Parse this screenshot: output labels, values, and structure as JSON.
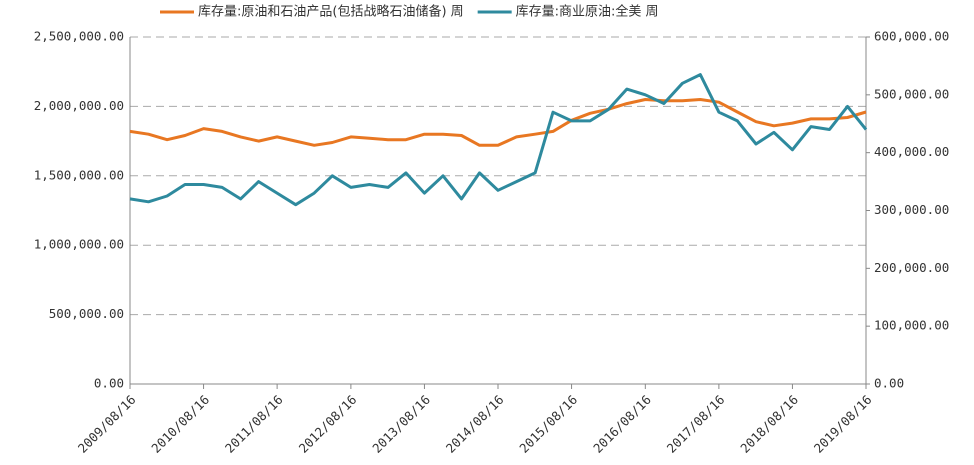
{
  "chart_data": {
    "type": "line",
    "x": [
      "2009/08/16",
      "2009/11/16",
      "2010/02/16",
      "2010/05/16",
      "2010/08/16",
      "2010/11/16",
      "2011/02/16",
      "2011/05/16",
      "2011/08/16",
      "2011/11/16",
      "2012/02/16",
      "2012/05/16",
      "2012/08/16",
      "2012/11/16",
      "2013/02/16",
      "2013/05/16",
      "2013/08/16",
      "2013/11/16",
      "2014/02/16",
      "2014/05/16",
      "2014/08/16",
      "2014/11/16",
      "2015/02/16",
      "2015/05/16",
      "2015/08/16",
      "2015/11/16",
      "2016/02/16",
      "2016/05/16",
      "2016/08/16",
      "2016/11/16",
      "2017/02/16",
      "2017/05/16",
      "2017/08/16",
      "2017/11/16",
      "2018/02/16",
      "2018/05/16",
      "2018/08/16",
      "2018/11/16",
      "2019/02/16",
      "2019/05/16",
      "2019/08/16"
    ],
    "series": [
      {
        "name": "库存量:原油和石油产品(包括战略石油储备) 周",
        "color": "#e87722",
        "values": [
          1820000,
          1800000,
          1760000,
          1790000,
          1840000,
          1820000,
          1780000,
          1750000,
          1780000,
          1750000,
          1720000,
          1740000,
          1780000,
          1770000,
          1760000,
          1760000,
          1800000,
          1800000,
          1790000,
          1720000,
          1720000,
          1780000,
          1800000,
          1820000,
          1900000,
          1950000,
          1980000,
          2020000,
          2050000,
          2040000,
          2040000,
          2050000,
          2030000,
          1960000,
          1890000,
          1860000,
          1880000,
          1910000,
          1910000,
          1920000,
          1960000
        ]
      },
      {
        "name": "库存量:商业原油:全美 周",
        "color": "#2e8a9e",
        "axis": "y2",
        "values": [
          320000,
          315000,
          325000,
          345000,
          345000,
          340000,
          320000,
          350000,
          330000,
          310000,
          330000,
          360000,
          340000,
          345000,
          340000,
          365000,
          330000,
          360000,
          320000,
          365000,
          335000,
          350000,
          365000,
          470000,
          455000,
          455000,
          475000,
          510000,
          500000,
          485000,
          520000,
          535000,
          470000,
          455000,
          415000,
          435000,
          405000,
          445000,
          440000,
          480000,
          440000
        ]
      }
    ],
    "xlim": [
      "2009/08/16",
      "2019/08/16"
    ],
    "xticks": [
      "2009/08/16",
      "2010/08/16",
      "2011/08/16",
      "2012/08/16",
      "2013/08/16",
      "2014/08/16",
      "2015/08/16",
      "2016/08/16",
      "2017/08/16",
      "2018/08/16",
      "2019/08/16"
    ],
    "ylim": [
      0,
      2500000
    ],
    "yticks": [
      {
        "value": 0,
        "label": "0.00"
      },
      {
        "value": 500000,
        "label": "500,000.00"
      },
      {
        "value": 1000000,
        "label": "1,000,000.00"
      },
      {
        "value": 1500000,
        "label": "1,500,000.00"
      },
      {
        "value": 2000000,
        "label": "2,000,000.00"
      },
      {
        "value": 2500000,
        "label": "2,500,000.00"
      }
    ],
    "y2lim": [
      0,
      600000
    ],
    "y2ticks": [
      {
        "value": 0,
        "label": "0.00"
      },
      {
        "value": 100000,
        "label": "100,000.00"
      },
      {
        "value": 200000,
        "label": "200,000.00"
      },
      {
        "value": 300000,
        "label": "300,000.00"
      },
      {
        "value": 400000,
        "label": "400,000.00"
      },
      {
        "value": 500000,
        "label": "500,000.00"
      },
      {
        "value": 600000,
        "label": "600,000.00"
      }
    ],
    "grid": true,
    "legend": "top"
  }
}
